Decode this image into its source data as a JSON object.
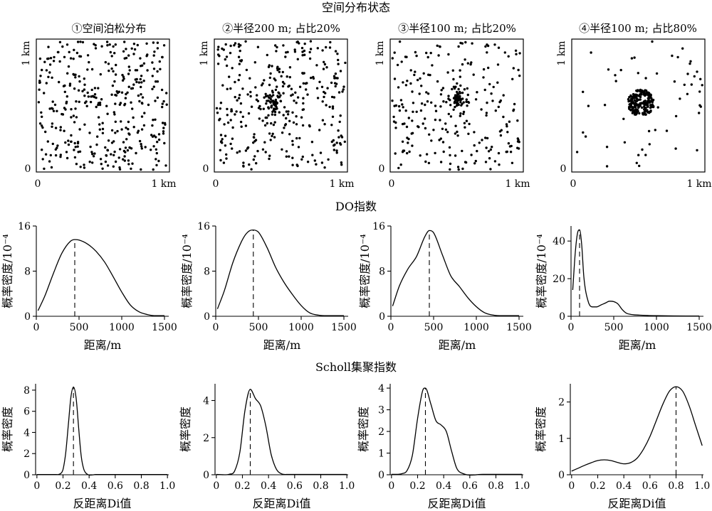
{
  "figure": {
    "section_titles": {
      "scatter": "空间分布状态",
      "do": "DO指数",
      "scholl": "Scholl集聚指数"
    }
  },
  "chart_data": [
    {
      "type": "scatter",
      "title": "①空间泊松分布",
      "xlabel": "",
      "ylabel": "",
      "x_ticks": [
        "0",
        "1 km"
      ],
      "y_ticks": [
        "0",
        "1 km"
      ],
      "distribution": {
        "mode": "poisson",
        "n_points": 380,
        "cluster_center": [
          0.5,
          0.5
        ],
        "cluster_radius_m": 0,
        "cluster_share": 0
      }
    },
    {
      "type": "scatter",
      "title": "②半径200 m; 占比20%",
      "xlabel": "",
      "ylabel": "",
      "x_ticks": [
        "0",
        "1 km"
      ],
      "y_ticks": [
        "0",
        "1 km"
      ],
      "distribution": {
        "mode": "clustered",
        "n_points": 380,
        "cluster_center": [
          0.45,
          0.52
        ],
        "cluster_radius_m": 200,
        "cluster_share": 0.2
      }
    },
    {
      "type": "scatter",
      "title": "③半径100 m; 占比20%",
      "xlabel": "",
      "ylabel": "",
      "x_ticks": [
        "0",
        "1 km"
      ],
      "y_ticks": [
        "0",
        "1 km"
      ],
      "distribution": {
        "mode": "clustered",
        "n_points": 300,
        "cluster_center": [
          0.5,
          0.55
        ],
        "cluster_radius_m": 100,
        "cluster_share": 0.2
      }
    },
    {
      "type": "scatter",
      "title": "④半径100 m; 占比80%",
      "xlabel": "",
      "ylabel": "",
      "x_ticks": [
        "0",
        "1 km"
      ],
      "y_ticks": [
        "0",
        "1 km"
      ],
      "distribution": {
        "mode": "clustered",
        "n_points": 270,
        "cluster_center": [
          0.52,
          0.52
        ],
        "cluster_radius_m": 100,
        "cluster_share": 0.8
      }
    },
    {
      "type": "line",
      "xlabel": "距离/m",
      "ylabel": "概率密度/10⁻⁴",
      "xlim": [
        0,
        1550
      ],
      "ylim": [
        0,
        16
      ],
      "x_ticks": [
        0,
        500,
        1000,
        1500
      ],
      "y_ticks": [
        0,
        8,
        16
      ],
      "marker_line": {
        "x": 450,
        "style": "dashed"
      },
      "x": [
        20,
        100,
        200,
        300,
        400,
        450,
        500,
        600,
        700,
        800,
        900,
        1000,
        1100,
        1200,
        1300,
        1400,
        1500
      ],
      "y": [
        1.0,
        3.6,
        7.6,
        11.2,
        13.3,
        13.6,
        13.5,
        12.8,
        11.5,
        9.6,
        7.0,
        4.3,
        2.0,
        0.8,
        0.3,
        0.1,
        0.1
      ]
    },
    {
      "type": "line",
      "xlabel": "距离/m",
      "ylabel": "概率密度/10⁻⁴",
      "xlim": [
        0,
        1550
      ],
      "ylim": [
        0,
        16
      ],
      "x_ticks": [
        0,
        500,
        1000,
        1500
      ],
      "y_ticks": [
        0,
        8,
        16
      ],
      "marker_line": {
        "x": 440,
        "style": "dashed"
      },
      "x": [
        20,
        100,
        200,
        300,
        350,
        400,
        440,
        500,
        600,
        700,
        800,
        900,
        1000,
        1100,
        1200,
        1300,
        1400,
        1500
      ],
      "y": [
        1.3,
        4.5,
        9.5,
        13.2,
        14.5,
        15.2,
        15.3,
        14.9,
        12.2,
        8.7,
        6.0,
        3.8,
        1.9,
        0.6,
        0.2,
        0.1,
        0.1,
        0.1
      ]
    },
    {
      "type": "line",
      "xlabel": "距离/m",
      "ylabel": "概率密度/10⁻⁴",
      "xlim": [
        0,
        1550
      ],
      "ylim": [
        0,
        16
      ],
      "x_ticks": [
        0,
        500,
        1000,
        1500
      ],
      "y_ticks": [
        0,
        8,
        16
      ],
      "marker_line": {
        "x": 450,
        "style": "dashed"
      },
      "x": [
        20,
        100,
        200,
        300,
        400,
        450,
        500,
        600,
        700,
        800,
        900,
        1000,
        1100,
        1200,
        1300,
        1400,
        1500
      ],
      "y": [
        1.8,
        5.4,
        8.4,
        10.6,
        14.2,
        15.2,
        14.8,
        11.0,
        7.2,
        5.3,
        3.3,
        1.7,
        0.6,
        0.2,
        0.1,
        0.1,
        0.1
      ]
    },
    {
      "type": "line",
      "xlabel": "距离/m",
      "ylabel": "概率密度/10⁻⁴",
      "xlim": [
        0,
        1550
      ],
      "ylim": [
        0,
        48
      ],
      "x_ticks": [
        0,
        500,
        1000,
        1500
      ],
      "y_ticks": [
        0,
        20,
        40
      ],
      "marker_line": {
        "x": 100,
        "style": "dashed"
      },
      "x": [
        20,
        50,
        75,
        100,
        125,
        150,
        200,
        250,
        300,
        350,
        400,
        450,
        500,
        550,
        600,
        650,
        700,
        800,
        900,
        1000,
        1200,
        1500
      ],
      "y": [
        14,
        34,
        44,
        46,
        38,
        21,
        8,
        5,
        5,
        6,
        7,
        8,
        7.8,
        6.5,
        3.5,
        1.6,
        1.0,
        0.6,
        0.4,
        0.3,
        0.2,
        0.1
      ]
    },
    {
      "type": "line",
      "xlabel": "反距离Di值",
      "ylabel": "概率密度",
      "xlim": [
        -0.01,
        1.01
      ],
      "ylim": [
        0,
        8.6
      ],
      "x_ticks": [
        "0",
        "0.2",
        "0.4",
        "0.6",
        "0.8",
        "1.0"
      ],
      "y_ticks": [
        0,
        2,
        4,
        6,
        8
      ],
      "marker_line": {
        "x": 0.28,
        "style": "dashed"
      },
      "x": [
        0,
        0.15,
        0.18,
        0.2,
        0.22,
        0.24,
        0.26,
        0.28,
        0.3,
        0.32,
        0.34,
        0.36,
        0.38,
        0.45,
        0.7,
        1.0
      ],
      "y": [
        0.02,
        0.02,
        0.1,
        0.5,
        2.0,
        4.6,
        7.3,
        8.3,
        7.3,
        4.4,
        1.7,
        0.5,
        0.1,
        0.02,
        0.02,
        0.02
      ]
    },
    {
      "type": "line",
      "xlabel": "反距离Di值",
      "ylabel": "概率密度",
      "xlim": [
        -0.01,
        1.01
      ],
      "ylim": [
        0,
        4.9
      ],
      "x_ticks": [
        "0",
        "0.2",
        "0.4",
        "0.6",
        "0.8",
        "1.0"
      ],
      "y_ticks": [
        0,
        2,
        4
      ],
      "marker_line": {
        "x": 0.26,
        "style": "dashed"
      },
      "x": [
        0,
        0.1,
        0.14,
        0.18,
        0.22,
        0.26,
        0.3,
        0.34,
        0.38,
        0.42,
        0.46,
        0.5,
        0.55,
        0.7,
        1.0
      ],
      "y": [
        0.02,
        0.03,
        0.2,
        1.2,
        3.5,
        4.6,
        4.1,
        3.7,
        2.6,
        1.1,
        0.3,
        0.05,
        0.02,
        0.02,
        0.02
      ]
    },
    {
      "type": "line",
      "xlabel": "反距离Di值",
      "ylabel": "概率密度",
      "xlim": [
        -0.01,
        1.01
      ],
      "ylim": [
        0,
        4.2
      ],
      "x_ticks": [
        "0",
        "0.2",
        "0.4",
        "0.6",
        "0.8",
        "1.0"
      ],
      "y_ticks": [
        0,
        1,
        2,
        3,
        4
      ],
      "marker_line": {
        "x": 0.26,
        "style": "dashed"
      },
      "x": [
        0,
        0.08,
        0.12,
        0.16,
        0.2,
        0.24,
        0.26,
        0.3,
        0.34,
        0.38,
        0.42,
        0.46,
        0.5,
        0.55,
        0.7,
        1.0
      ],
      "y": [
        0.02,
        0.05,
        0.2,
        0.9,
        2.6,
        3.9,
        4.0,
        3.3,
        2.5,
        2.3,
        2.0,
        1.1,
        0.3,
        0.05,
        0.02,
        0.02
      ]
    },
    {
      "type": "line",
      "xlabel": "反距离Di值",
      "ylabel": "概率密度",
      "xlim": [
        -0.01,
        1.01
      ],
      "ylim": [
        0,
        2.5
      ],
      "x_ticks": [
        "0",
        "0.2",
        "0.4",
        "0.6",
        "0.8",
        "1.0"
      ],
      "y_ticks": [
        0,
        1,
        2
      ],
      "marker_line": {
        "x": 0.8,
        "style": "dashed"
      },
      "x": [
        0,
        0.05,
        0.1,
        0.15,
        0.2,
        0.25,
        0.3,
        0.35,
        0.4,
        0.45,
        0.5,
        0.55,
        0.6,
        0.65,
        0.7,
        0.75,
        0.8,
        0.85,
        0.9,
        0.95,
        1.0
      ],
      "y": [
        0.1,
        0.18,
        0.26,
        0.33,
        0.39,
        0.41,
        0.39,
        0.34,
        0.3,
        0.33,
        0.45,
        0.7,
        1.05,
        1.5,
        1.95,
        2.3,
        2.42,
        2.3,
        1.9,
        1.35,
        0.8
      ]
    }
  ]
}
